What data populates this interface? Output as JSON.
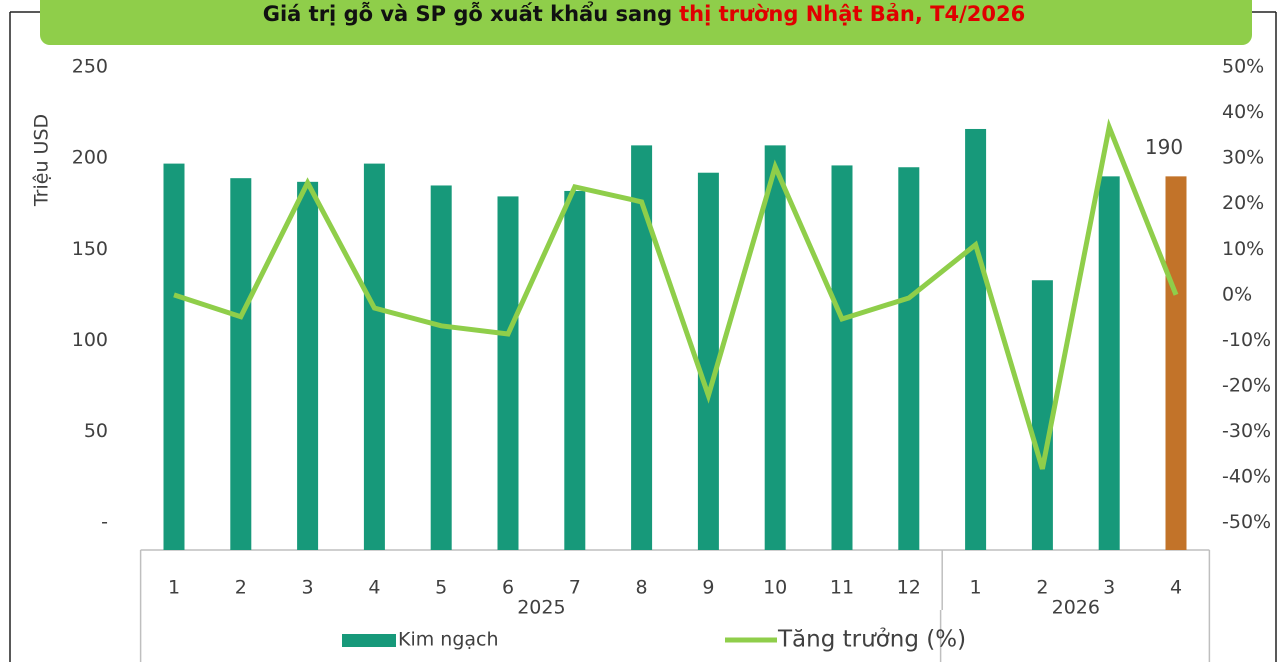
{
  "chart_data": {
    "type": "bar_line",
    "title": [
      "Giá trị gỗ và SP gỗ xuất khẩu sang",
      "thị trường Nhật Bản, T4/2026"
    ],
    "y_label": "Triệu USD",
    "groups": [
      {
        "name": "2025",
        "categories": [
          "1",
          "2",
          "3",
          "4",
          "5",
          "6",
          "7",
          "8",
          "9",
          "10",
          "11",
          "12"
        ]
      },
      {
        "name": "2026",
        "categories": [
          "1",
          "2",
          "3",
          "4"
        ]
      }
    ],
    "series": [
      {
        "name": "Kim ngạch",
        "type": "bar",
        "axis": "y",
        "colors": [
          "#17997a",
          "#17997a",
          "#17997a",
          "#17997a",
          "#17997a",
          "#17997a",
          "#17997a",
          "#17997a",
          "#17997a",
          "#17997a",
          "#17997a",
          "#17997a",
          "#17997a",
          "#17997a",
          "#17997a",
          "#c27329"
        ],
        "color": "#17997a",
        "values": [
          197,
          189,
          187,
          197,
          185,
          179,
          182,
          207,
          192,
          207,
          196,
          195,
          216,
          133,
          190,
          190
        ],
        "value_labels": [
          null,
          null,
          null,
          null,
          null,
          null,
          null,
          null,
          null,
          null,
          null,
          null,
          null,
          null,
          null,
          "190"
        ]
      },
      {
        "name": "Tăng trưởng (%)",
        "type": "line",
        "axis": "y2",
        "color": "#8fce4a",
        "values": [
          0,
          -4.8,
          24.6,
          -2.9,
          -6.8,
          -8.6,
          23.7,
          20.4,
          -22.1,
          28.1,
          -5.3,
          -0.7,
          11,
          -38.2,
          36.8,
          0
        ]
      }
    ],
    "ylim": [
      -15,
      250
    ],
    "yticks": [
      {
        "value": 0,
        "label": "-"
      },
      50,
      100,
      150,
      200,
      250
    ],
    "y2lim": [
      -56,
      50
    ],
    "y2ticks": [
      {
        "value": -50,
        "label": "-50%"
      },
      {
        "value": -40,
        "label": "-40%"
      },
      {
        "value": -30,
        "label": "-30%"
      },
      {
        "value": -20,
        "label": "-20%"
      },
      {
        "value": -10,
        "label": "-10%"
      },
      {
        "value": 0,
        "label": "0%"
      },
      {
        "value": 10,
        "label": "10%"
      },
      {
        "value": 20,
        "label": "20%"
      },
      {
        "value": 30,
        "label": "30%"
      },
      {
        "value": 40,
        "label": "40%"
      },
      {
        "value": 50,
        "label": "50%"
      }
    ],
    "grid": false,
    "legend": "bottom"
  }
}
